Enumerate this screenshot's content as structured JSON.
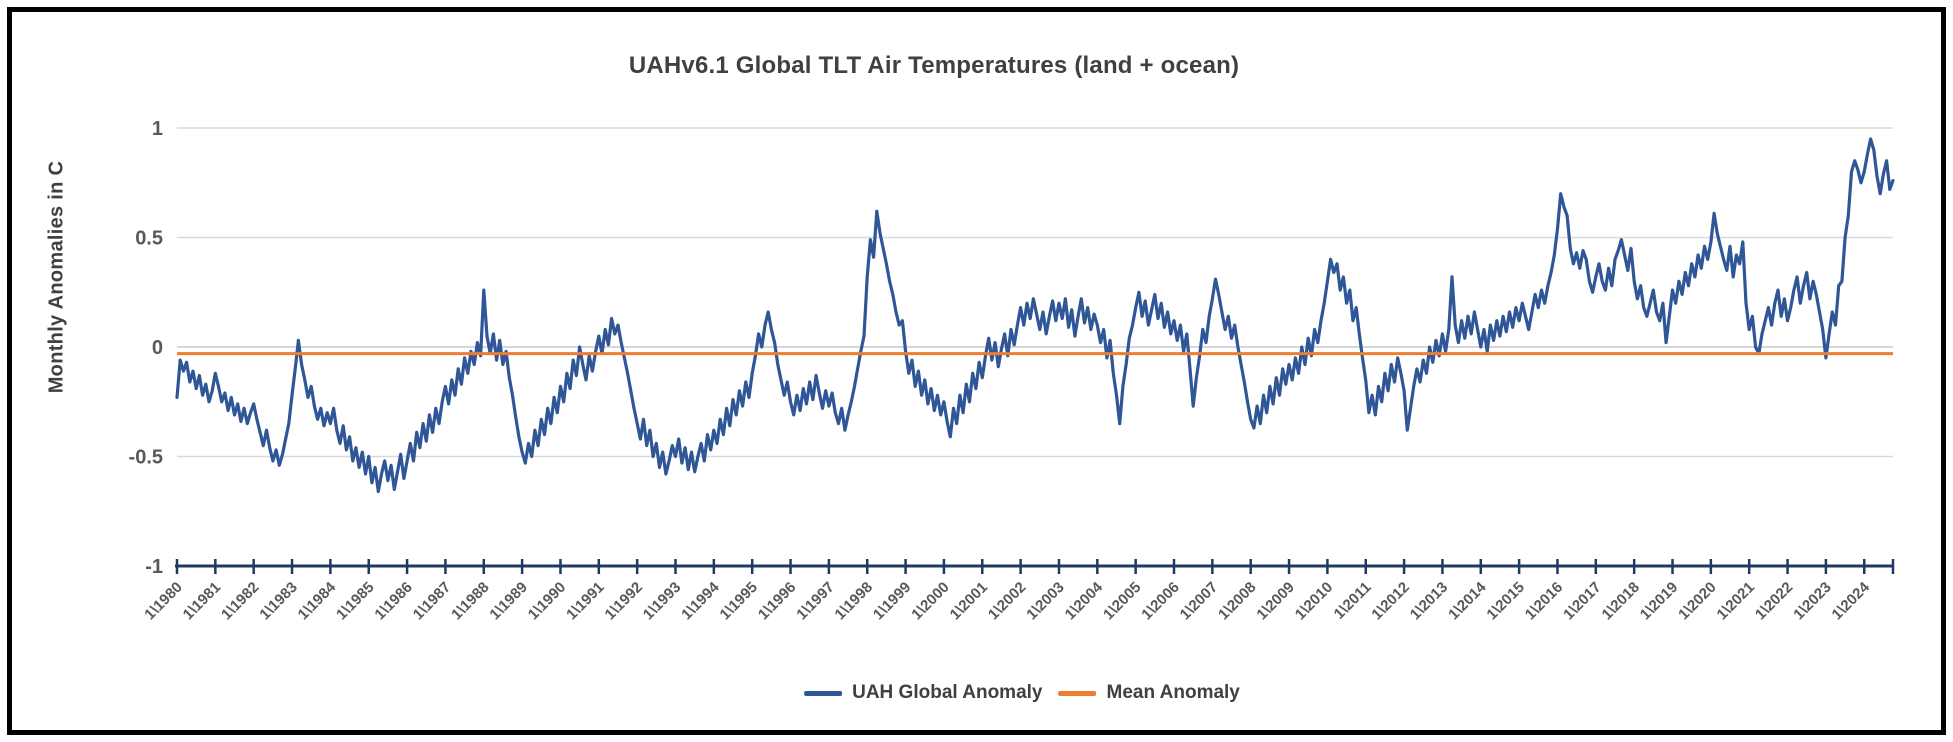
{
  "window": {
    "background": "#ffffff",
    "border_color": "#000000"
  },
  "chart_data": {
    "type": "line",
    "title": "UAHv6.1 Global TLT Air Temperatures (land + ocean)",
    "xlabel": "",
    "ylabel": "Monthly Anomalies in C",
    "ylim": [
      -1,
      1
    ],
    "y_ticks": [
      1,
      0.5,
      0,
      -0.5,
      -1
    ],
    "grid": true,
    "legend_position": "bottom-center",
    "frequency": "monthly",
    "x_range": "Jan 1980 - Oct 2024",
    "x_tick_labels": [
      "1\\1980",
      "1\\1981",
      "1\\1982",
      "1\\1983",
      "1\\1984",
      "1\\1985",
      "1\\1986",
      "1\\1987",
      "1\\1988",
      "1\\1989",
      "1\\1990",
      "1\\1991",
      "1\\1992",
      "1\\1993",
      "1\\1994",
      "1\\1995",
      "1\\1996",
      "1\\1997",
      "1\\1998",
      "1\\1999",
      "1\\2000",
      "1\\2001",
      "1\\2002",
      "1\\2003",
      "1\\2004",
      "1\\2005",
      "1\\2006",
      "1\\2007",
      "1\\2008",
      "1\\2009",
      "1\\2010",
      "1\\2011",
      "1\\2012",
      "1\\2013",
      "1\\2014",
      "1\\2015",
      "1\\2016",
      "1\\2017",
      "1\\2018",
      "1\\2019",
      "1\\2020",
      "1\\2021",
      "1\\2022",
      "1\\2023",
      "1\\2024"
    ],
    "colors": {
      "grid": "#D9D9D9",
      "zero_grid": "#C9C9C9",
      "axis": "#1F3864",
      "tick_label": "#595959",
      "title": "#404040"
    },
    "series": [
      {
        "name": "UAH Global Anomaly",
        "color": "#2F5697",
        "values": [
          -0.23,
          -0.06,
          -0.11,
          -0.07,
          -0.16,
          -0.11,
          -0.19,
          -0.13,
          -0.22,
          -0.17,
          -0.25,
          -0.2,
          -0.12,
          -0.18,
          -0.25,
          -0.21,
          -0.29,
          -0.23,
          -0.31,
          -0.26,
          -0.34,
          -0.28,
          -0.35,
          -0.3,
          -0.26,
          -0.33,
          -0.39,
          -0.45,
          -0.38,
          -0.46,
          -0.52,
          -0.47,
          -0.54,
          -0.49,
          -0.42,
          -0.35,
          -0.22,
          -0.1,
          0.03,
          -0.08,
          -0.15,
          -0.23,
          -0.18,
          -0.27,
          -0.33,
          -0.28,
          -0.36,
          -0.3,
          -0.35,
          -0.28,
          -0.38,
          -0.44,
          -0.36,
          -0.47,
          -0.41,
          -0.52,
          -0.46,
          -0.55,
          -0.48,
          -0.58,
          -0.5,
          -0.62,
          -0.55,
          -0.66,
          -0.58,
          -0.52,
          -0.61,
          -0.54,
          -0.65,
          -0.57,
          -0.49,
          -0.6,
          -0.52,
          -0.44,
          -0.52,
          -0.39,
          -0.46,
          -0.35,
          -0.43,
          -0.31,
          -0.39,
          -0.28,
          -0.35,
          -0.25,
          -0.18,
          -0.26,
          -0.15,
          -0.22,
          -0.1,
          -0.17,
          -0.05,
          -0.12,
          -0.02,
          -0.08,
          0.02,
          -0.04,
          0.26,
          0.05,
          -0.03,
          0.06,
          -0.06,
          0.03,
          -0.08,
          -0.02,
          -0.14,
          -0.22,
          -0.32,
          -0.41,
          -0.48,
          -0.53,
          -0.44,
          -0.5,
          -0.38,
          -0.45,
          -0.33,
          -0.4,
          -0.28,
          -0.35,
          -0.23,
          -0.3,
          -0.18,
          -0.25,
          -0.12,
          -0.19,
          -0.06,
          -0.13,
          0.0,
          -0.08,
          -0.15,
          -0.04,
          -0.11,
          -0.02,
          0.05,
          -0.03,
          0.08,
          0.01,
          0.13,
          0.06,
          0.1,
          0.02,
          -0.05,
          -0.12,
          -0.2,
          -0.28,
          -0.35,
          -0.42,
          -0.33,
          -0.45,
          -0.38,
          -0.5,
          -0.44,
          -0.55,
          -0.48,
          -0.58,
          -0.52,
          -0.45,
          -0.5,
          -0.42,
          -0.53,
          -0.46,
          -0.56,
          -0.48,
          -0.57,
          -0.5,
          -0.44,
          -0.52,
          -0.4,
          -0.47,
          -0.38,
          -0.44,
          -0.33,
          -0.4,
          -0.28,
          -0.36,
          -0.24,
          -0.31,
          -0.2,
          -0.27,
          -0.16,
          -0.23,
          -0.12,
          -0.04,
          0.06,
          0.0,
          0.1,
          0.16,
          0.08,
          0.02,
          -0.08,
          -0.15,
          -0.22,
          -0.16,
          -0.25,
          -0.31,
          -0.22,
          -0.29,
          -0.19,
          -0.26,
          -0.16,
          -0.24,
          -0.13,
          -0.21,
          -0.28,
          -0.2,
          -0.27,
          -0.21,
          -0.3,
          -0.35,
          -0.28,
          -0.38,
          -0.31,
          -0.25,
          -0.18,
          -0.1,
          -0.02,
          0.05,
          0.32,
          0.49,
          0.41,
          0.62,
          0.52,
          0.45,
          0.38,
          0.3,
          0.24,
          0.16,
          0.1,
          0.12,
          -0.02,
          -0.12,
          -0.06,
          -0.18,
          -0.11,
          -0.22,
          -0.15,
          -0.26,
          -0.19,
          -0.29,
          -0.22,
          -0.31,
          -0.25,
          -0.34,
          -0.41,
          -0.28,
          -0.35,
          -0.22,
          -0.3,
          -0.17,
          -0.25,
          -0.12,
          -0.19,
          -0.07,
          -0.14,
          -0.04,
          0.04,
          -0.06,
          0.02,
          -0.09,
          -0.01,
          0.06,
          -0.04,
          0.08,
          0.01,
          0.1,
          0.18,
          0.1,
          0.2,
          0.13,
          0.22,
          0.15,
          0.08,
          0.16,
          0.06,
          0.14,
          0.21,
          0.12,
          0.2,
          0.13,
          0.22,
          0.09,
          0.17,
          0.05,
          0.14,
          0.22,
          0.11,
          0.18,
          0.08,
          0.15,
          0.1,
          0.02,
          0.08,
          -0.05,
          0.03,
          -0.12,
          -0.22,
          -0.35,
          -0.18,
          -0.08,
          0.04,
          0.1,
          0.18,
          0.25,
          0.14,
          0.21,
          0.1,
          0.17,
          0.24,
          0.13,
          0.2,
          0.09,
          0.16,
          0.06,
          0.12,
          0.03,
          0.1,
          -0.02,
          0.06,
          -0.1,
          -0.27,
          -0.14,
          -0.04,
          0.08,
          0.02,
          0.14,
          0.22,
          0.31,
          0.24,
          0.16,
          0.08,
          0.14,
          0.04,
          0.1,
          0.0,
          -0.08,
          -0.16,
          -0.25,
          -0.33,
          -0.37,
          -0.27,
          -0.35,
          -0.22,
          -0.3,
          -0.18,
          -0.26,
          -0.14,
          -0.22,
          -0.1,
          -0.17,
          -0.08,
          -0.15,
          -0.05,
          -0.12,
          0.0,
          -0.08,
          0.04,
          -0.04,
          0.08,
          0.02,
          0.12,
          0.2,
          0.3,
          0.4,
          0.34,
          0.38,
          0.26,
          0.32,
          0.2,
          0.26,
          0.12,
          0.18,
          0.06,
          -0.05,
          -0.15,
          -0.3,
          -0.22,
          -0.31,
          -0.18,
          -0.25,
          -0.12,
          -0.2,
          -0.08,
          -0.16,
          -0.05,
          -0.12,
          -0.2,
          -0.38,
          -0.28,
          -0.18,
          -0.1,
          -0.16,
          -0.06,
          -0.12,
          0.0,
          -0.07,
          0.03,
          -0.04,
          0.06,
          -0.02,
          0.08,
          0.32,
          0.1,
          0.02,
          0.12,
          0.04,
          0.14,
          0.06,
          0.16,
          0.08,
          0.0,
          0.08,
          -0.02,
          0.1,
          0.03,
          0.12,
          0.05,
          0.14,
          0.07,
          0.16,
          0.09,
          0.18,
          0.12,
          0.2,
          0.14,
          0.08,
          0.16,
          0.24,
          0.18,
          0.26,
          0.2,
          0.28,
          0.34,
          0.42,
          0.54,
          0.7,
          0.64,
          0.6,
          0.45,
          0.38,
          0.43,
          0.36,
          0.44,
          0.4,
          0.3,
          0.25,
          0.32,
          0.38,
          0.3,
          0.26,
          0.36,
          0.28,
          0.4,
          0.44,
          0.49,
          0.42,
          0.35,
          0.45,
          0.3,
          0.22,
          0.28,
          0.18,
          0.14,
          0.2,
          0.26,
          0.16,
          0.12,
          0.2,
          0.02,
          0.14,
          0.26,
          0.2,
          0.3,
          0.24,
          0.34,
          0.28,
          0.38,
          0.32,
          0.42,
          0.36,
          0.46,
          0.4,
          0.48,
          0.61,
          0.52,
          0.46,
          0.4,
          0.35,
          0.46,
          0.32,
          0.42,
          0.38,
          0.48,
          0.2,
          0.08,
          0.14,
          0.0,
          -0.03,
          0.06,
          0.12,
          0.18,
          0.1,
          0.2,
          0.26,
          0.14,
          0.22,
          0.12,
          0.18,
          0.26,
          0.32,
          0.2,
          0.28,
          0.34,
          0.22,
          0.3,
          0.24,
          0.16,
          0.08,
          -0.05,
          0.06,
          0.16,
          0.1,
          0.28,
          0.3,
          0.5,
          0.6,
          0.8,
          0.85,
          0.81,
          0.75,
          0.8,
          0.88,
          0.95,
          0.9,
          0.78,
          0.7,
          0.79,
          0.85,
          0.72,
          0.76
        ]
      },
      {
        "name": "Mean Anomaly",
        "color": "#ED7D31",
        "style": "constant",
        "value": -0.03
      }
    ]
  }
}
